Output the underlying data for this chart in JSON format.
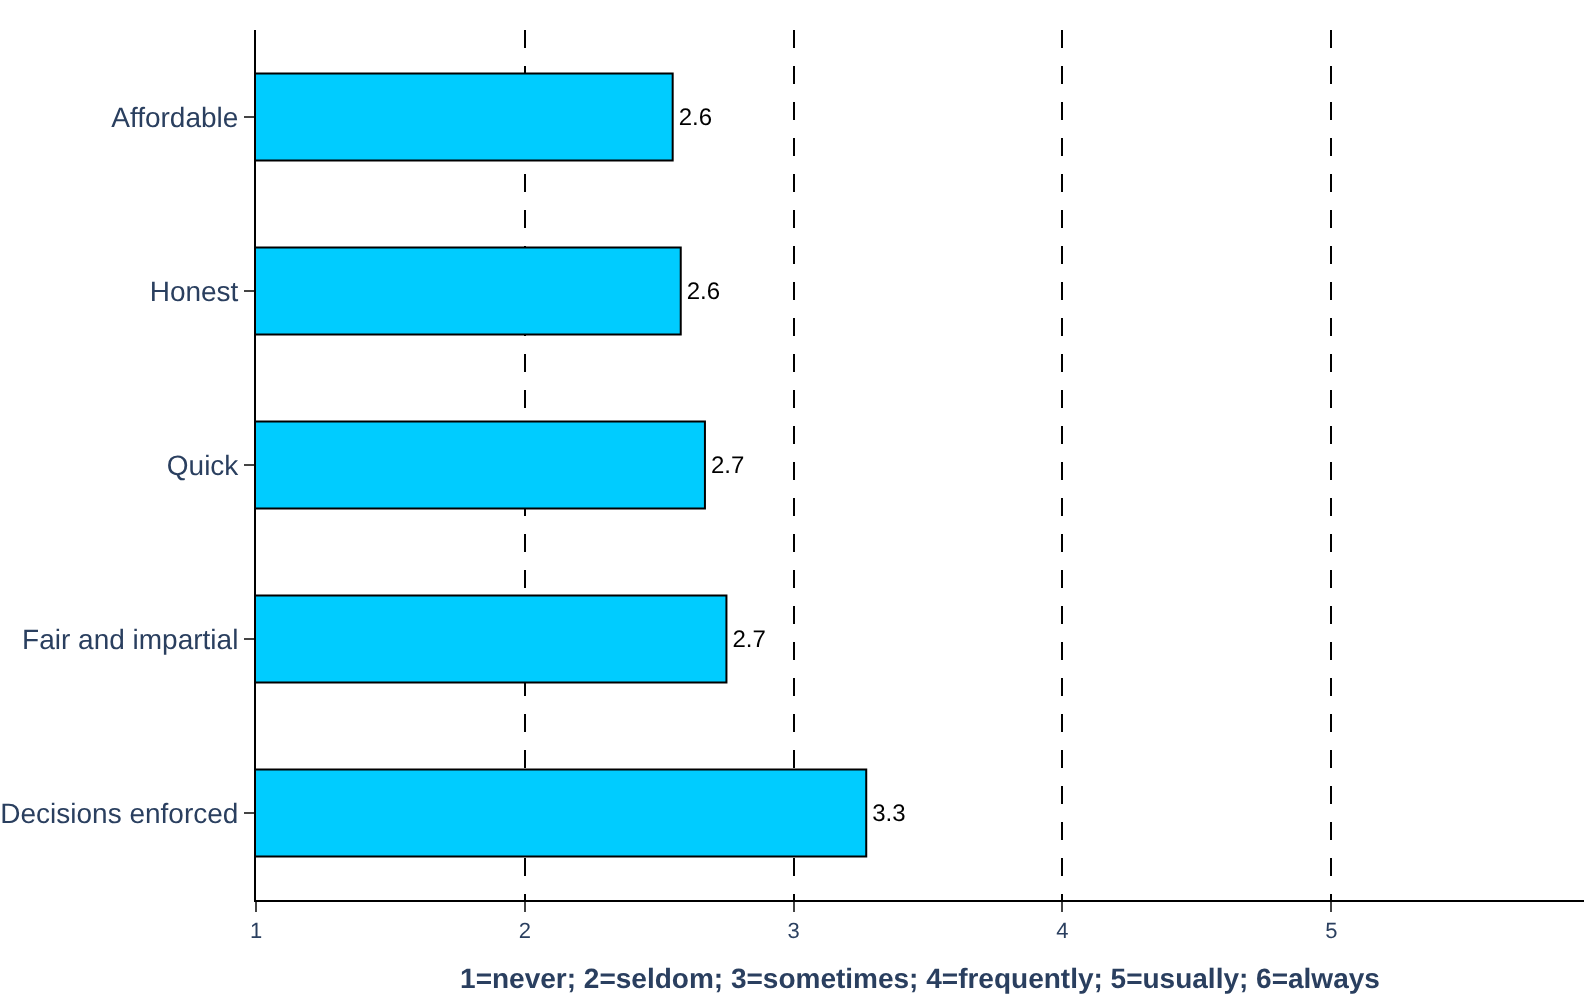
{
  "chart_data": {
    "type": "bar",
    "orientation": "horizontal",
    "xlabel": "1=never; 2=seldom; 3=sometimes; 4=frequently; 5=usually; 6=always",
    "categories": [
      "Affordable",
      "Honest",
      "Quick",
      "Fair and impartial",
      "Decisions enforced"
    ],
    "values": [
      2.55,
      2.58,
      2.67,
      2.75,
      3.27
    ],
    "value_labels": [
      "2.6",
      "2.6",
      "2.7",
      "2.7",
      "3.3"
    ],
    "color": "#00ccff",
    "xlim": [
      1,
      5.94
    ],
    "xticks": [
      1,
      2,
      3,
      4,
      5
    ],
    "grid": "x",
    "line_style": "dashed",
    "legend": false
  }
}
